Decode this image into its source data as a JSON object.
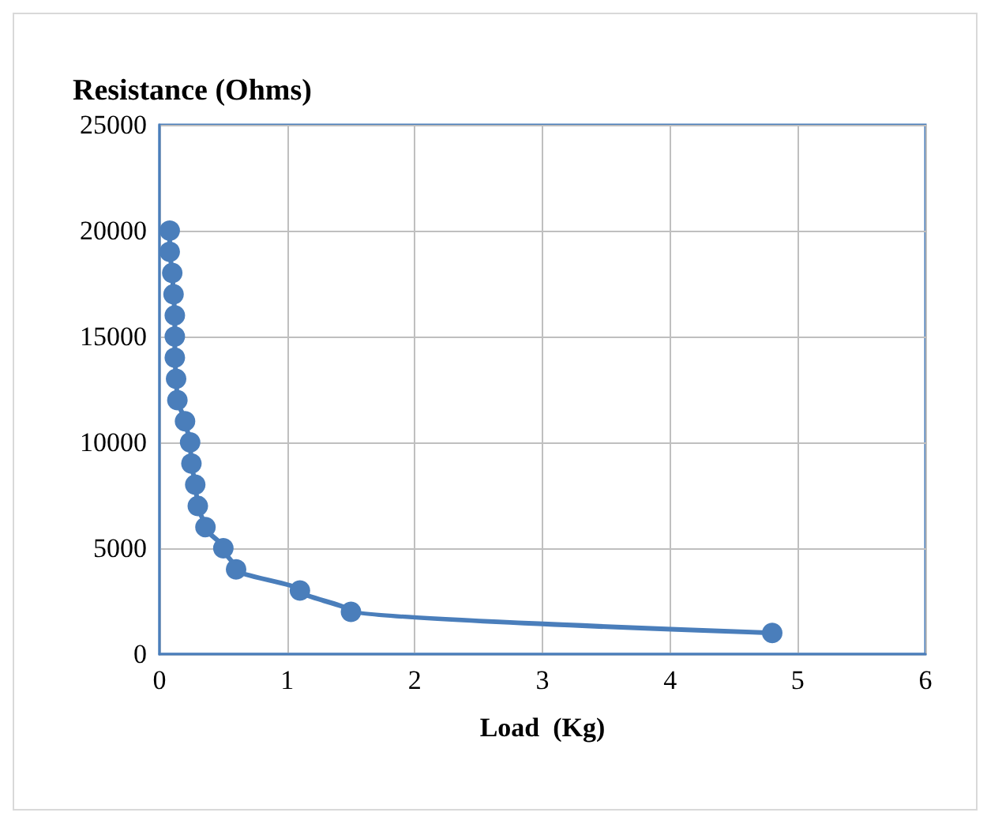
{
  "chart_data": {
    "type": "line",
    "ylabel": "Resistance (Ohms)",
    "xlabel": "Load  (Kg)",
    "x": [
      0.08,
      0.08,
      0.1,
      0.11,
      0.12,
      0.12,
      0.12,
      0.13,
      0.14,
      0.2,
      0.24,
      0.25,
      0.28,
      0.3,
      0.36,
      0.5,
      0.6,
      1.1,
      1.5,
      4.8
    ],
    "series": [
      {
        "color": "#4a7ebb",
        "values": [
          20000,
          19000,
          18000,
          17000,
          16000,
          15000,
          14000,
          13000,
          12000,
          11000,
          10000,
          9000,
          8000,
          7000,
          6000,
          5000,
          4000,
          3000,
          2000,
          1000
        ]
      }
    ],
    "xlim": [
      0,
      6
    ],
    "xticks": [
      0,
      1,
      2,
      3,
      4,
      5,
      6
    ],
    "ylim": [
      0,
      25000
    ],
    "yticks": [
      0,
      5000,
      10000,
      15000,
      20000,
      25000
    ],
    "grid": true,
    "marker": "circle",
    "line_style": "solid"
  }
}
